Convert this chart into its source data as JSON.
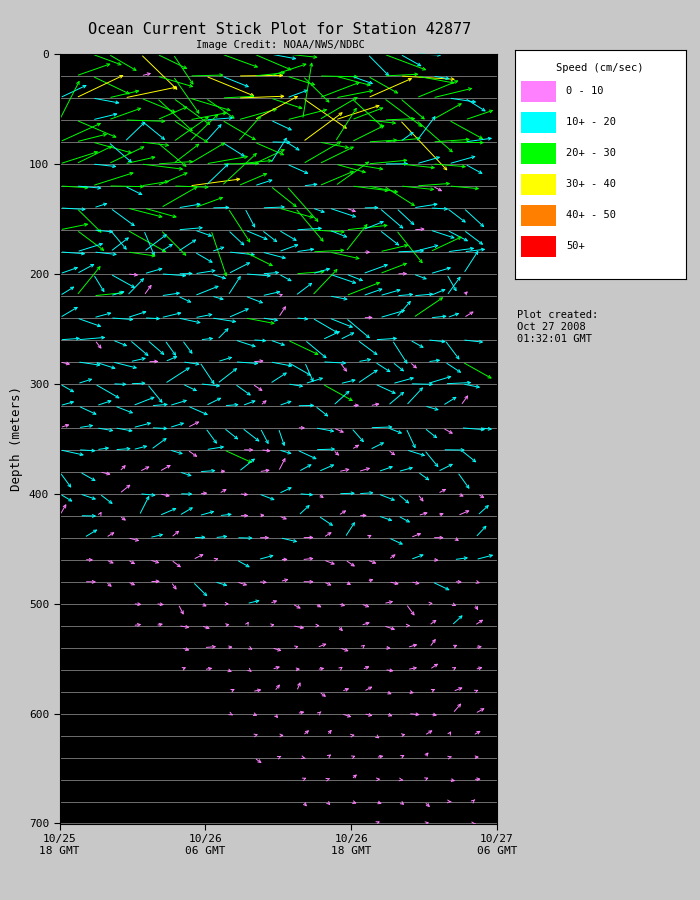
{
  "title": "Ocean Current Stick Plot for Station 42877",
  "subtitle": "Image Credit: NOAA/NWS/NDBC",
  "ylabel": "Depth (meters)",
  "plot_created": "Plot created:\nOct 27 2008\n01:32:01 GMT",
  "depth_min": 0,
  "depth_max": 700,
  "time_labels": [
    "10/25\n18 GMT",
    "10/26\n06 GMT",
    "10/26\n18 GMT",
    "10/27\n06 GMT"
  ],
  "time_ticks": [
    0,
    12,
    24,
    36
  ],
  "depth_ticks": [
    0,
    100,
    200,
    300,
    400,
    500,
    600,
    700
  ],
  "depth_lines": [
    0,
    20,
    40,
    60,
    80,
    100,
    120,
    140,
    160,
    180,
    200,
    220,
    240,
    260,
    280,
    300,
    320,
    340,
    360,
    380,
    400,
    420,
    440,
    460,
    480,
    500,
    520,
    540,
    560,
    580,
    600,
    620,
    640,
    660,
    680,
    700
  ],
  "fig_bg": "#c8c8c8",
  "ax_bg": "#000000",
  "speed_colors": {
    "0-10": "#ff80ff",
    "10-20": "#00ffff",
    "20-30": "#00ff00",
    "30-40": "#ffff00",
    "40-50": "#ff8000",
    "50+": "#ff0000"
  },
  "legend_colors": [
    "#ff80ff",
    "#00ffff",
    "#00ff00",
    "#ffff00",
    "#ff8000",
    "#ff0000"
  ],
  "legend_labels": [
    "0 - 10",
    "10+ - 20",
    "20+ - 30",
    "30+ - 40",
    "40+ - 50",
    "50+"
  ]
}
